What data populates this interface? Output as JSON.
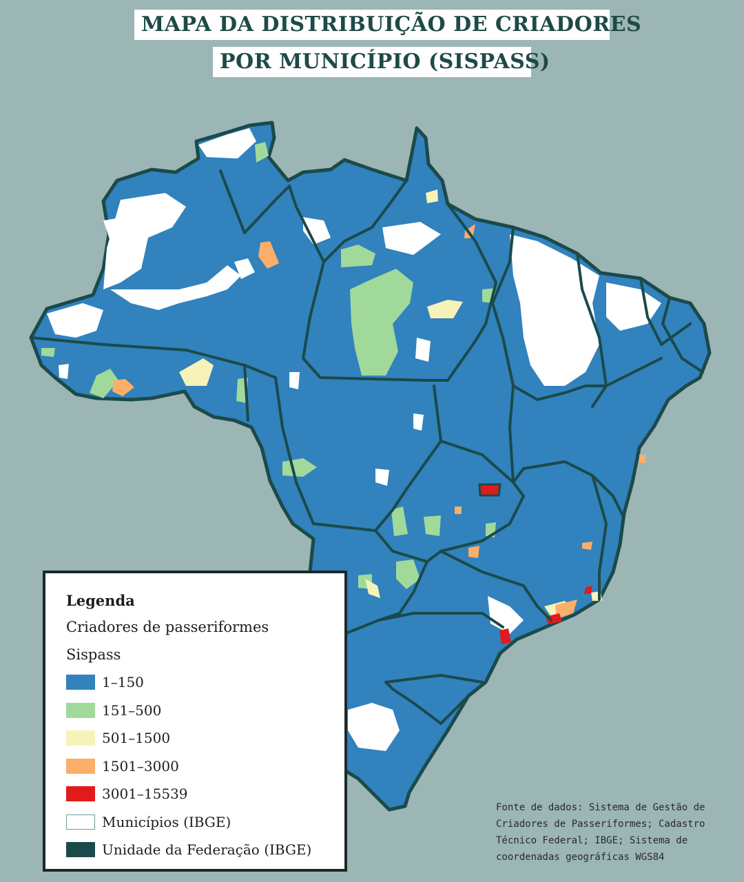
{
  "title": {
    "line1": "MAPA DA DISTRIBUIÇÃO DE CRIADORES",
    "line2": "POR MUNICÍPIO (SISPASS)"
  },
  "legend": {
    "title": "Legenda",
    "subtitle": "Criadores de passeriformes Sispass",
    "items": [
      {
        "label": "1–150",
        "color": "#3182bd"
      },
      {
        "label": "151–500",
        "color": "#a1d99b"
      },
      {
        "label": "501–1500",
        "color": "#f7f2b8"
      },
      {
        "label": "1501–3000",
        "color": "#fdae6b"
      },
      {
        "label": "3001–15539",
        "color": "#e31a1c"
      },
      {
        "label": "Municípios (IBGE)",
        "color": "#ffffff"
      },
      {
        "label": "Unidade da Federação (IBGE)",
        "color": "#1b4a4a"
      }
    ]
  },
  "source": "Fonte de dados: Sistema de Gestão de Criadores de Passeriformes; Cadastro Técnico Federal; IBGE; Sistema de coordenadas geográficas WGS84",
  "colors": {
    "background": "#9cb5b5",
    "state_border": "#1b4a4a",
    "class_1": "#3182bd",
    "class_2": "#a1d99b",
    "class_3": "#f7f2b8",
    "class_4": "#fdae6b",
    "class_5": "#e31a1c",
    "no_data": "#ffffff"
  }
}
